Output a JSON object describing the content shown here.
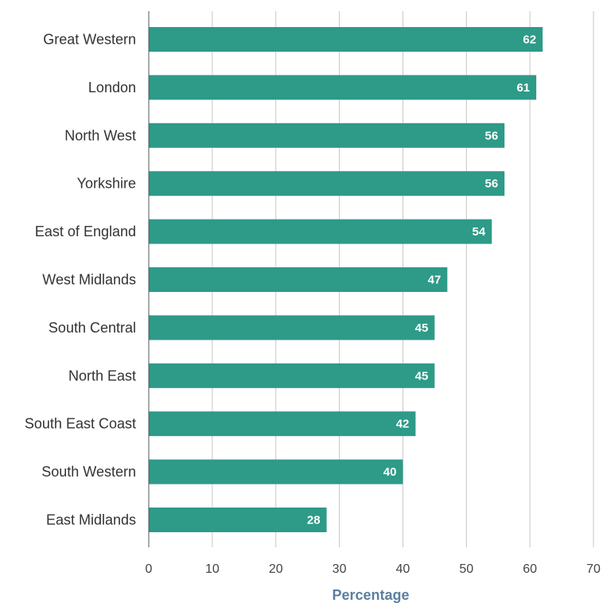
{
  "chart_data": {
    "type": "bar",
    "orientation": "horizontal",
    "categories": [
      "Great Western",
      "London",
      "North West",
      "Yorkshire",
      "East of England",
      "West Midlands",
      "South Central",
      "North East",
      "South East Coast",
      "South Western",
      "East Midlands"
    ],
    "values": [
      62,
      61,
      56,
      56,
      54,
      47,
      45,
      45,
      42,
      40,
      28
    ],
    "xlabel": "Percentage",
    "ylabel": "",
    "xlim": [
      0,
      70
    ],
    "xticks": [
      0,
      10,
      20,
      30,
      40,
      50,
      60,
      70
    ],
    "grid": "vertical",
    "data_labels": "inside-end",
    "colors": {
      "bar": "#2e9a88",
      "grid": "#c8c8c8",
      "axis": "#555555",
      "axis_title": "#5a7fa0",
      "value_label": "#ffffff"
    }
  }
}
